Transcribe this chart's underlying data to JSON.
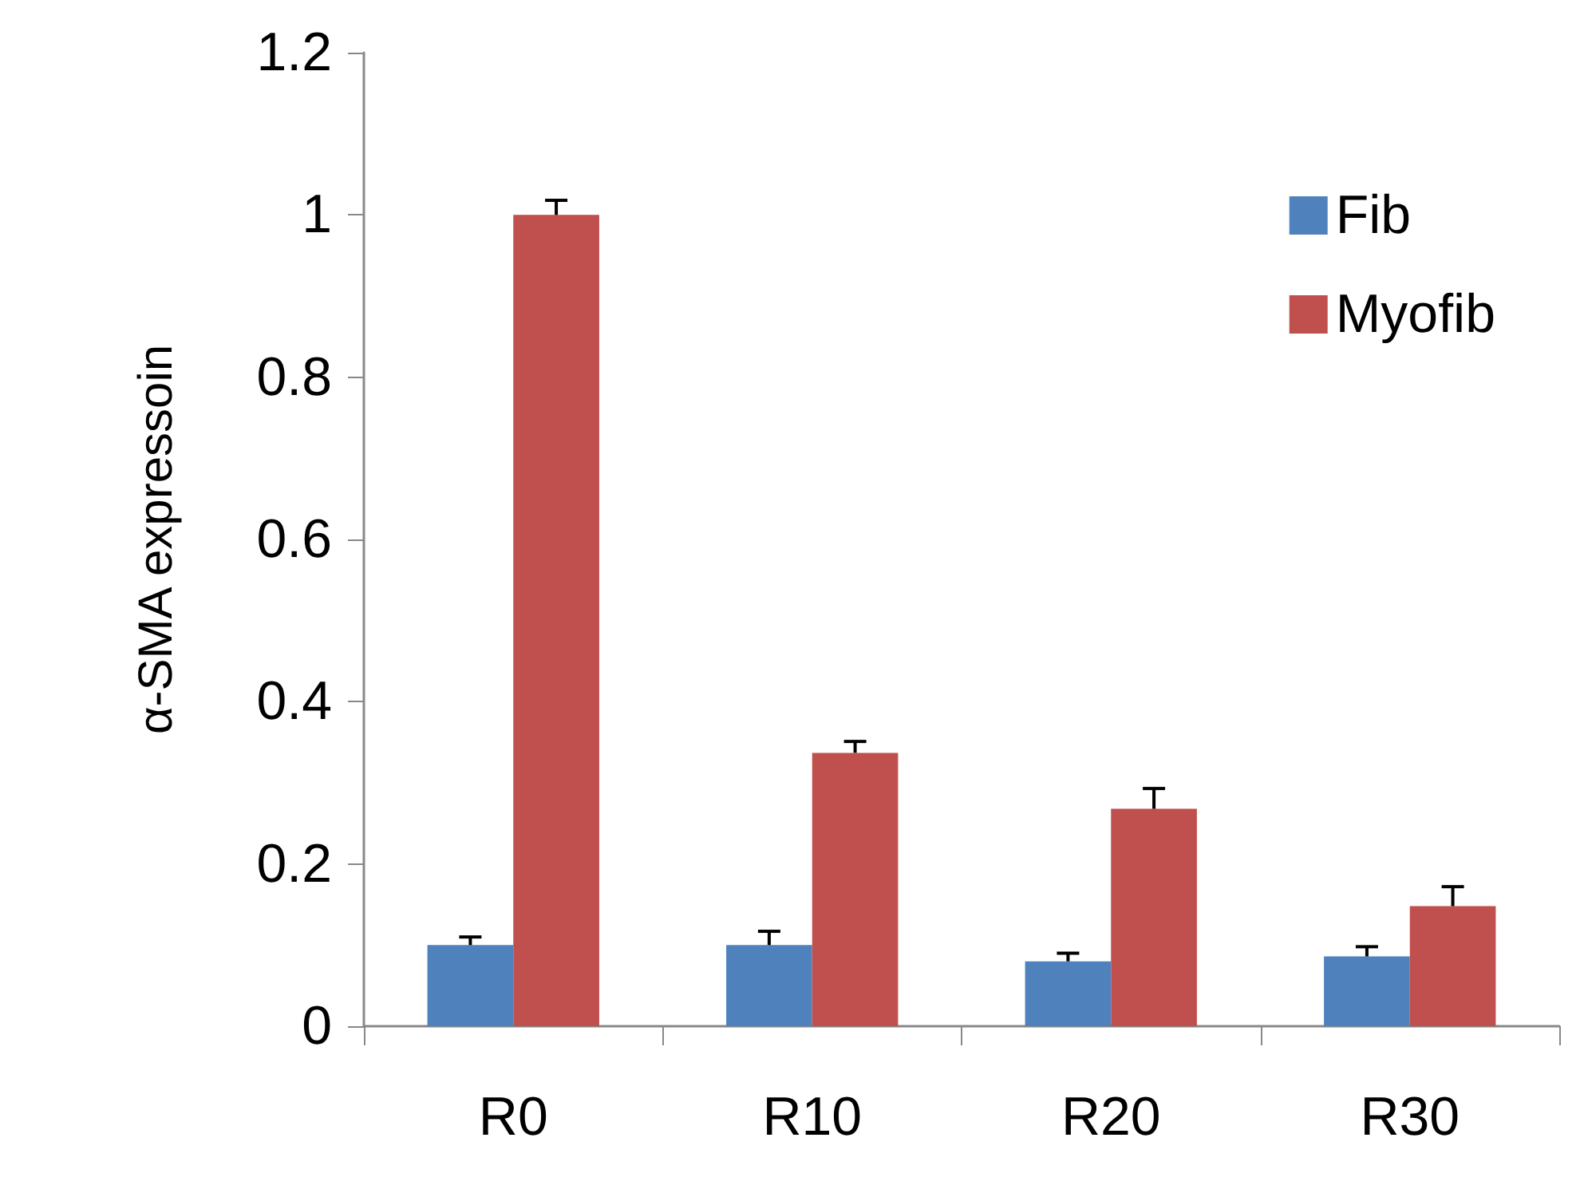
{
  "chart_data": {
    "type": "bar",
    "ylabel": "α-SMA expressoin",
    "categories": [
      "R0",
      "R10",
      "R20",
      "R30"
    ],
    "series": [
      {
        "name": "Fib",
        "color": "#4f81bd",
        "values": [
          0.1,
          0.1,
          0.08,
          0.086
        ],
        "errors": [
          [
            0.1,
            0.11
          ],
          [
            0.1,
            0.117
          ],
          [
            0.08,
            0.09
          ],
          [
            0.086,
            0.098
          ]
        ]
      },
      {
        "name": "Myofib",
        "color": "#c0504d",
        "values": [
          1.0,
          0.337,
          0.268,
          0.148
        ],
        "errors": [
          [
            1.0,
            1.018
          ],
          [
            0.337,
            0.351
          ],
          [
            0.268,
            0.293
          ],
          [
            0.148,
            0.172
          ]
        ]
      }
    ],
    "ylim": [
      0,
      1.2
    ],
    "yticks": [
      0,
      0.2,
      0.4,
      0.6,
      0.8,
      1,
      1.2
    ],
    "grid": false,
    "legend": "top right"
  }
}
